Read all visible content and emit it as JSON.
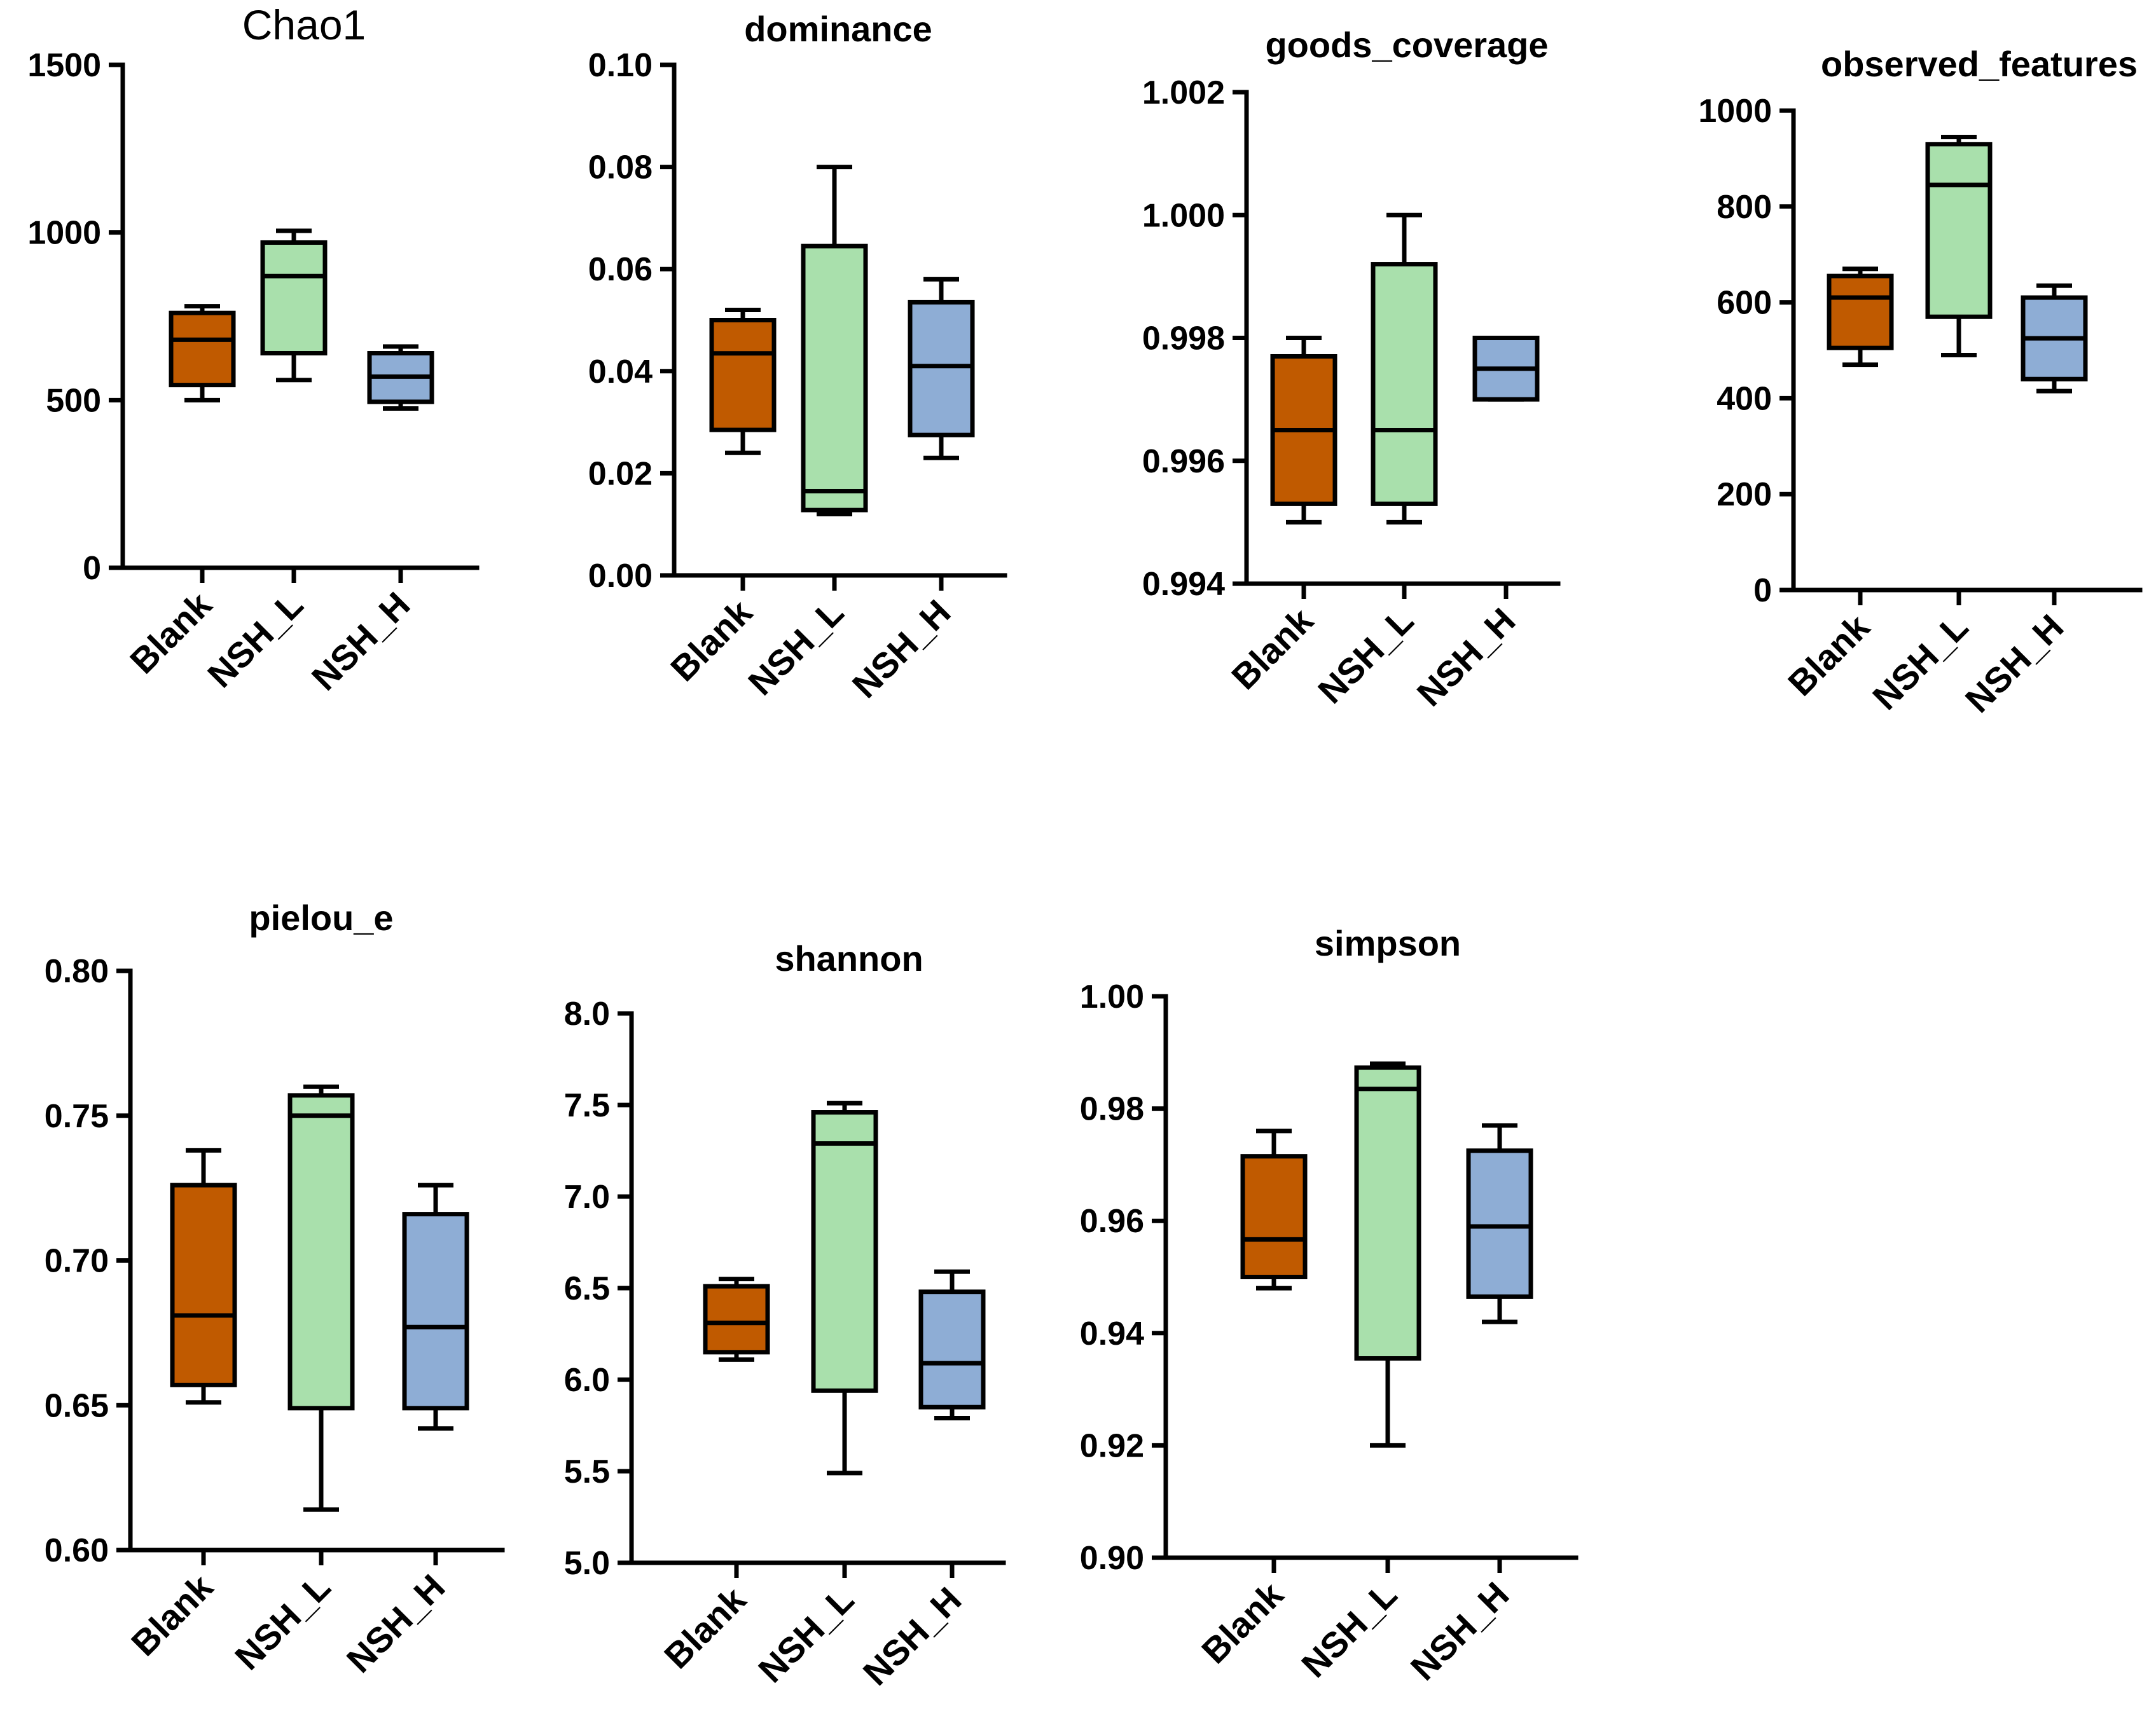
{
  "group_colors": {
    "Blank": "#C05A00",
    "NSH_L": "#A9E0AC",
    "NSH_H": "#8EADD5"
  },
  "chart_data": [
    {
      "type": "box",
      "title": "Chao1",
      "categories": [
        "Blank",
        "NSH_L",
        "NSH_H"
      ],
      "yticks": [
        "0",
        "500",
        "1000",
        "1500"
      ],
      "ylim": [
        0,
        1500
      ],
      "boxes": [
        {
          "name": "Blank",
          "min": 500,
          "q1": 545,
          "median": 680,
          "q3": 760,
          "max": 780
        },
        {
          "name": "NSH_L",
          "min": 560,
          "q1": 640,
          "median": 870,
          "q3": 970,
          "max": 1005
        },
        {
          "name": "NSH_H",
          "min": 475,
          "q1": 495,
          "median": 570,
          "q3": 640,
          "max": 660
        }
      ]
    },
    {
      "type": "box",
      "title": "dominance",
      "categories": [
        "Blank",
        "NSH_L",
        "NSH_H"
      ],
      "yticks": [
        "0.00",
        "0.02",
        "0.04",
        "0.06",
        "0.08",
        "0.10"
      ],
      "ylim": [
        0,
        0.1
      ],
      "boxes": [
        {
          "name": "Blank",
          "min": 0.024,
          "q1": 0.0285,
          "median": 0.0435,
          "q3": 0.05,
          "max": 0.052
        },
        {
          "name": "NSH_L",
          "min": 0.012,
          "q1": 0.0128,
          "median": 0.0165,
          "q3": 0.0645,
          "max": 0.08
        },
        {
          "name": "NSH_H",
          "min": 0.023,
          "q1": 0.0275,
          "median": 0.041,
          "q3": 0.0535,
          "max": 0.058
        }
      ]
    },
    {
      "type": "box",
      "title": "goods_coverage",
      "categories": [
        "Blank",
        "NSH_L",
        "NSH_H"
      ],
      "yticks": [
        "0.994",
        "0.996",
        "0.998",
        "1.000",
        "1.002"
      ],
      "ylim": [
        0.994,
        1.002
      ],
      "boxes": [
        {
          "name": "Blank",
          "min": 0.995,
          "q1": 0.9953,
          "median": 0.9965,
          "q3": 0.9977,
          "max": 0.998
        },
        {
          "name": "NSH_L",
          "min": 0.995,
          "q1": 0.9953,
          "median": 0.9965,
          "q3": 0.9992,
          "max": 1.0
        },
        {
          "name": "NSH_H",
          "min": 0.997,
          "q1": 0.997,
          "median": 0.9975,
          "q3": 0.998,
          "max": 0.998
        }
      ]
    },
    {
      "type": "box",
      "title": "observed_features",
      "categories": [
        "Blank",
        "NSH_L",
        "NSH_H"
      ],
      "yticks": [
        "0",
        "200",
        "400",
        "600",
        "800",
        "1000"
      ],
      "ylim": [
        0,
        1000
      ],
      "boxes": [
        {
          "name": "Blank",
          "min": 470,
          "q1": 505,
          "median": 610,
          "q3": 655,
          "max": 670
        },
        {
          "name": "NSH_L",
          "min": 490,
          "q1": 570,
          "median": 845,
          "q3": 930,
          "max": 945
        },
        {
          "name": "NSH_H",
          "min": 415,
          "q1": 440,
          "median": 525,
          "q3": 610,
          "max": 635
        }
      ]
    },
    {
      "type": "box",
      "title": "pielou_e",
      "categories": [
        "Blank",
        "NSH_L",
        "NSH_H"
      ],
      "yticks": [
        "0.60",
        "0.65",
        "0.70",
        "0.75",
        "0.80"
      ],
      "ylim": [
        0.6,
        0.8
      ],
      "boxes": [
        {
          "name": "Blank",
          "min": 0.651,
          "q1": 0.657,
          "median": 0.681,
          "q3": 0.726,
          "max": 0.738
        },
        {
          "name": "NSH_L",
          "min": 0.614,
          "q1": 0.649,
          "median": 0.75,
          "q3": 0.757,
          "max": 0.76
        },
        {
          "name": "NSH_H",
          "min": 0.642,
          "q1": 0.649,
          "median": 0.677,
          "q3": 0.716,
          "max": 0.726
        }
      ]
    },
    {
      "type": "box",
      "title": "shannon",
      "categories": [
        "Blank",
        "NSH_L",
        "NSH_H"
      ],
      "yticks": [
        "5.0",
        "5.5",
        "6.0",
        "6.5",
        "7.0",
        "7.5",
        "8.0"
      ],
      "ylim": [
        5,
        8
      ],
      "boxes": [
        {
          "name": "Blank",
          "min": 6.11,
          "q1": 6.15,
          "median": 6.31,
          "q3": 6.51,
          "max": 6.55
        },
        {
          "name": "NSH_L",
          "min": 5.49,
          "q1": 5.94,
          "median": 7.29,
          "q3": 7.46,
          "max": 7.51
        },
        {
          "name": "NSH_H",
          "min": 5.79,
          "q1": 5.85,
          "median": 6.09,
          "q3": 6.48,
          "max": 6.59
        }
      ]
    },
    {
      "type": "box",
      "title": "simpson",
      "categories": [
        "Blank",
        "NSH_L",
        "NSH_H"
      ],
      "yticks": [
        "0.90",
        "0.92",
        "0.94",
        "0.96",
        "0.98",
        "1.00"
      ],
      "ylim": [
        0.9,
        1.0
      ],
      "boxes": [
        {
          "name": "Blank",
          "min": 0.948,
          "q1": 0.95,
          "median": 0.9567,
          "q3": 0.9715,
          "max": 0.976
        },
        {
          "name": "NSH_L",
          "min": 0.92,
          "q1": 0.9355,
          "median": 0.9835,
          "q3": 0.9873,
          "max": 0.988
        },
        {
          "name": "NSH_H",
          "min": 0.942,
          "q1": 0.9465,
          "median": 0.959,
          "q3": 0.9725,
          "max": 0.977
        }
      ]
    }
  ]
}
